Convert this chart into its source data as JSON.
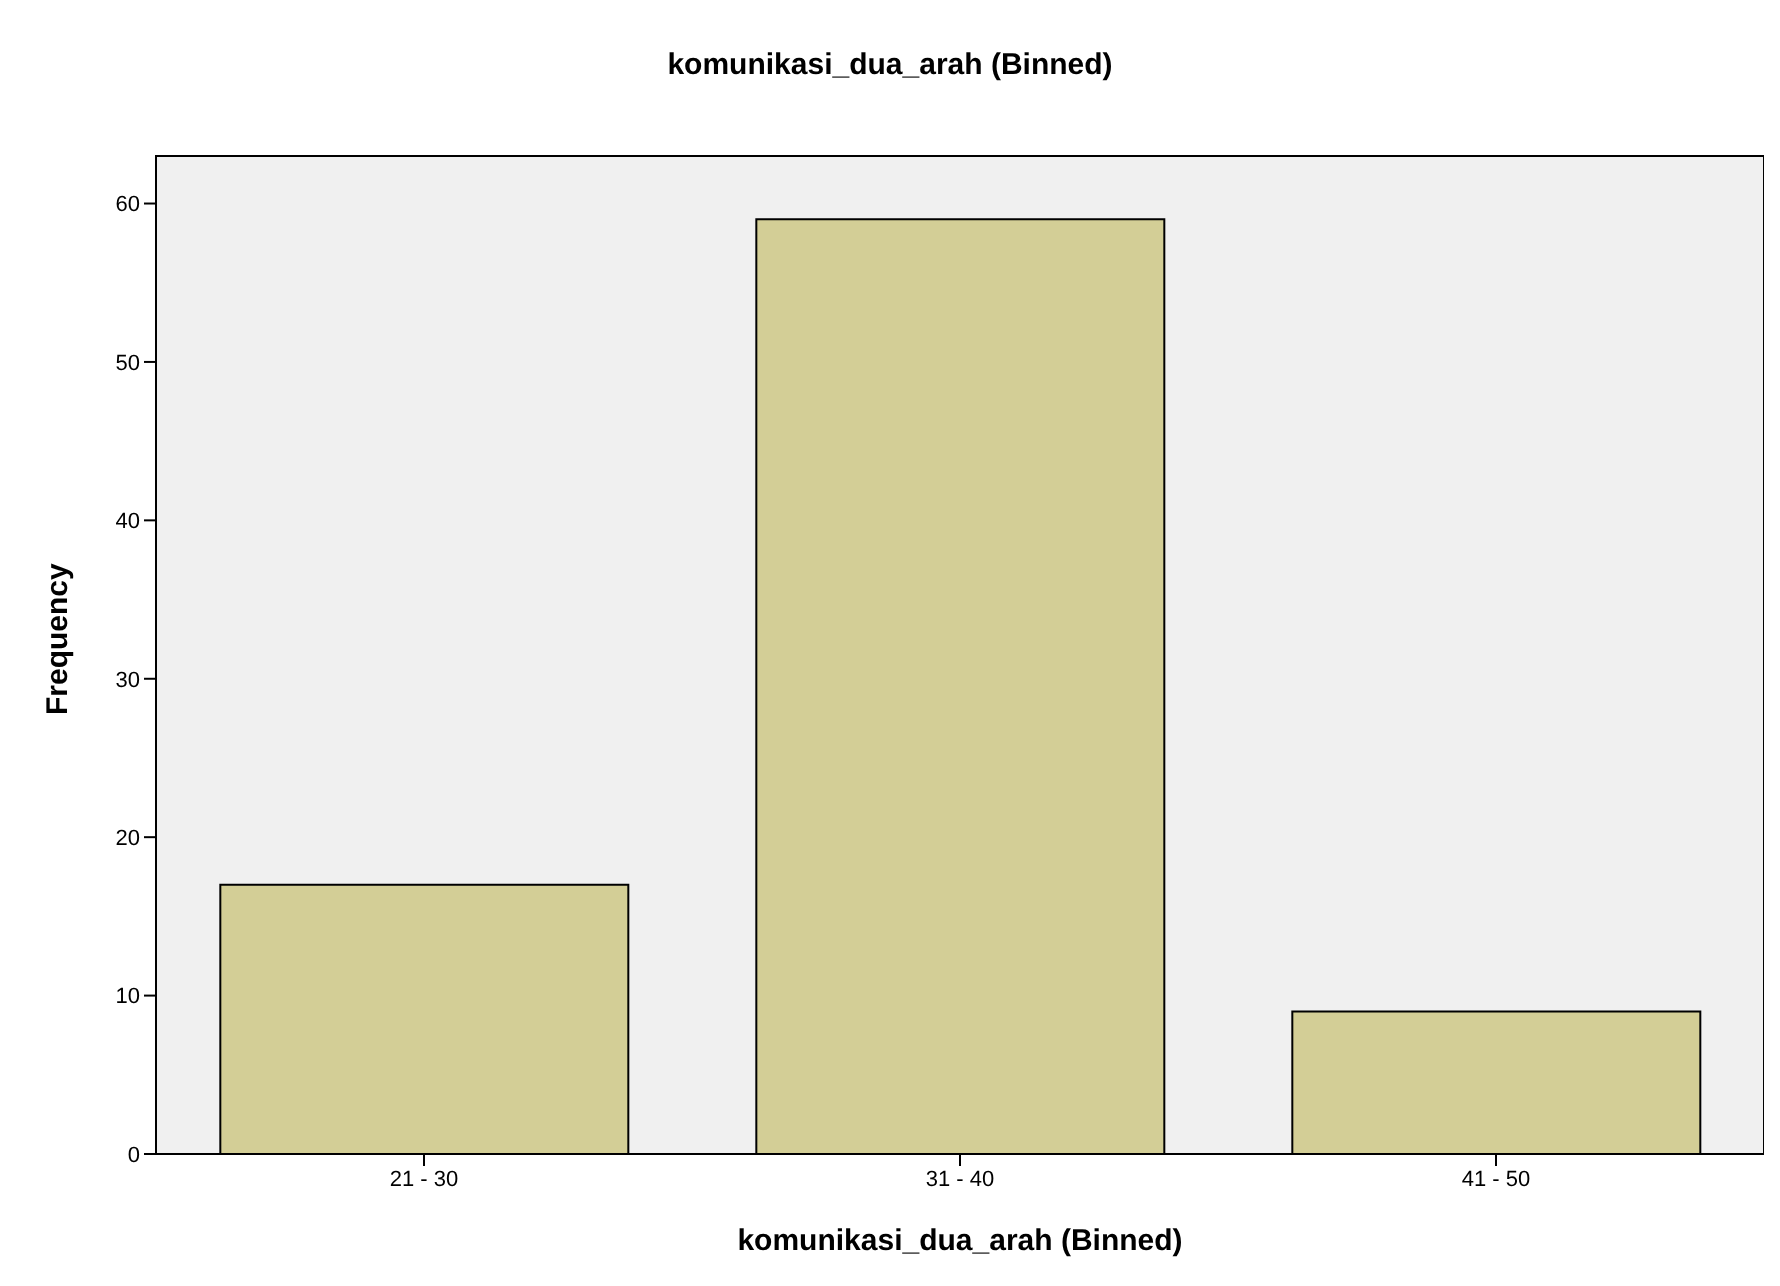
{
  "chart_data": {
    "type": "bar",
    "title": "komunikasi_dua_arah (Binned)",
    "xlabel": "komunikasi_dua_arah (Binned)",
    "ylabel": "Frequency",
    "categories": [
      "21 - 30",
      "31 - 40",
      "41 - 50"
    ],
    "values": [
      17,
      59,
      9
    ],
    "color": "#d3ce96",
    "ylim": [
      0,
      63
    ],
    "yticks": [
      0,
      10,
      20,
      30,
      40,
      50,
      60
    ]
  }
}
